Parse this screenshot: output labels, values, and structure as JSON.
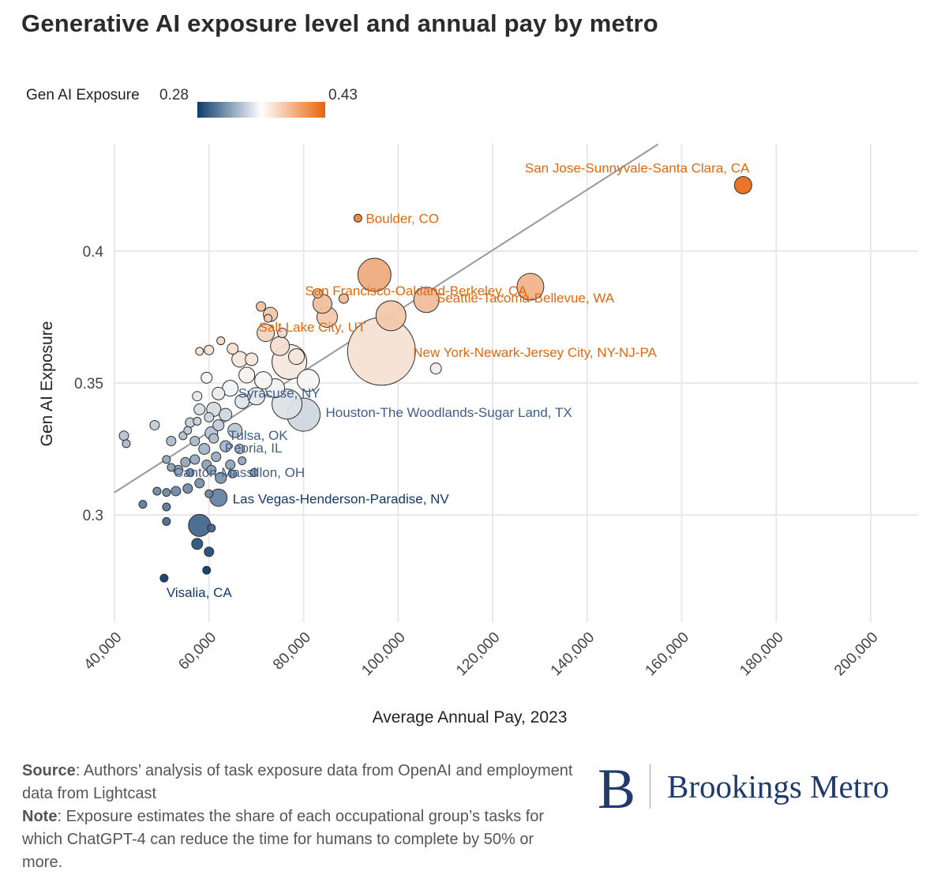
{
  "title": "Generative AI exposure level and annual pay by metro",
  "legend": {
    "label": "Gen AI Exposure",
    "min_label": "0.28",
    "max_label": "0.43",
    "colors": [
      "#0d3c6e",
      "#ffffff",
      "#e8650a"
    ]
  },
  "source": {
    "source_label": "Source",
    "source_text": ": Authors’ analysis of task exposure data from OpenAI and employment data from Lightcast",
    "note_label": "Note",
    "note_text": ": Exposure estimates the share of each occupational group’s tasks for which ChatGPT-4 can reduce the time for humans to complete by 50% or more."
  },
  "logo": {
    "mark": "B",
    "name": "Brookings Metro"
  },
  "chart_data": {
    "type": "scatter",
    "xlabel": "Average Annual Pay, 2023",
    "ylabel": "Gen AI Exposure",
    "xlim": [
      40000,
      210000
    ],
    "ylim": [
      0.26,
      0.44
    ],
    "xticks": [
      "40,000",
      "60,000",
      "80,000",
      "100,000",
      "120,000",
      "140,000",
      "160,000",
      "180,000",
      "200,000"
    ],
    "yticks": [
      "0.3",
      "0.35",
      "0.4"
    ],
    "grid": true,
    "trend_line": {
      "x": [
        40000,
        155000
      ],
      "y": [
        0.3085,
        0.4405
      ]
    },
    "color_scale": {
      "min": 0.28,
      "mid": 0.35,
      "max": 0.43,
      "low": "#0d3c6e",
      "midColor": "#f7f7f7",
      "high": "#e8650a"
    },
    "points": [
      {
        "x": 173000,
        "y": 0.425,
        "size": 11,
        "label": "San Jose-Sunnyvale-Santa Clara, CA"
      },
      {
        "x": 91500,
        "y": 0.4125,
        "size": 5,
        "label": "Boulder, CO"
      },
      {
        "x": 95000,
        "y": 0.391,
        "size": 21,
        "label": "San Francisco-Oakland-Berkeley, CA"
      },
      {
        "x": 128000,
        "y": 0.3865,
        "size": 17,
        "label": "Seattle-Tacoma-Bellevue, WA"
      },
      {
        "x": 106000,
        "y": 0.3815,
        "size": 16,
        "label": ""
      },
      {
        "x": 73000,
        "y": 0.376,
        "size": 9,
        "label": "Salt Lake City, UT"
      },
      {
        "x": 96500,
        "y": 0.362,
        "size": 43,
        "label": "New York-Newark-Jersey City, NY-NJ-PA"
      },
      {
        "x": 98500,
        "y": 0.3755,
        "size": 19,
        "label": ""
      },
      {
        "x": 85000,
        "y": 0.375,
        "size": 13,
        "label": ""
      },
      {
        "x": 84000,
        "y": 0.38,
        "size": 12,
        "label": ""
      },
      {
        "x": 83000,
        "y": 0.384,
        "size": 6,
        "label": ""
      },
      {
        "x": 88500,
        "y": 0.382,
        "size": 6,
        "label": ""
      },
      {
        "x": 71000,
        "y": 0.379,
        "size": 6,
        "label": ""
      },
      {
        "x": 108000,
        "y": 0.3555,
        "size": 7,
        "label": ""
      },
      {
        "x": 80000,
        "y": 0.338,
        "size": 21,
        "label": "Houston-The Woodlands-Sugar Land, TX"
      },
      {
        "x": 77000,
        "y": 0.358,
        "size": 22,
        "label": ""
      },
      {
        "x": 81000,
        "y": 0.351,
        "size": 14,
        "label": ""
      },
      {
        "x": 76500,
        "y": 0.342,
        "size": 19,
        "label": ""
      },
      {
        "x": 75000,
        "y": 0.364,
        "size": 12,
        "label": ""
      },
      {
        "x": 72000,
        "y": 0.369,
        "size": 11,
        "label": ""
      },
      {
        "x": 78500,
        "y": 0.36,
        "size": 10,
        "label": ""
      },
      {
        "x": 74000,
        "y": 0.348,
        "size": 12,
        "label": ""
      },
      {
        "x": 71500,
        "y": 0.351,
        "size": 11,
        "label": ""
      },
      {
        "x": 70000,
        "y": 0.345,
        "size": 11,
        "label": ""
      },
      {
        "x": 69000,
        "y": 0.359,
        "size": 8,
        "label": ""
      },
      {
        "x": 68000,
        "y": 0.353,
        "size": 10,
        "label": ""
      },
      {
        "x": 66500,
        "y": 0.359,
        "size": 10,
        "label": ""
      },
      {
        "x": 65000,
        "y": 0.363,
        "size": 7,
        "label": ""
      },
      {
        "x": 64500,
        "y": 0.348,
        "size": 10,
        "label": "Syracuse, NY"
      },
      {
        "x": 67000,
        "y": 0.343,
        "size": 9,
        "label": ""
      },
      {
        "x": 62000,
        "y": 0.346,
        "size": 8,
        "label": ""
      },
      {
        "x": 61000,
        "y": 0.34,
        "size": 9,
        "label": ""
      },
      {
        "x": 63500,
        "y": 0.338,
        "size": 8,
        "label": ""
      },
      {
        "x": 65500,
        "y": 0.332,
        "size": 9,
        "label": "Tulsa, OK"
      },
      {
        "x": 62000,
        "y": 0.334,
        "size": 7,
        "label": ""
      },
      {
        "x": 59500,
        "y": 0.352,
        "size": 7,
        "label": ""
      },
      {
        "x": 57500,
        "y": 0.345,
        "size": 6,
        "label": ""
      },
      {
        "x": 58000,
        "y": 0.34,
        "size": 7,
        "label": ""
      },
      {
        "x": 60500,
        "y": 0.331,
        "size": 8,
        "label": ""
      },
      {
        "x": 57000,
        "y": 0.328,
        "size": 6,
        "label": ""
      },
      {
        "x": 59000,
        "y": 0.325,
        "size": 7,
        "label": ""
      },
      {
        "x": 63500,
        "y": 0.326,
        "size": 7,
        "label": "Peoria, IL"
      },
      {
        "x": 61500,
        "y": 0.322,
        "size": 6,
        "label": ""
      },
      {
        "x": 59500,
        "y": 0.319,
        "size": 6,
        "label": ""
      },
      {
        "x": 57000,
        "y": 0.321,
        "size": 6,
        "label": ""
      },
      {
        "x": 55000,
        "y": 0.32,
        "size": 6,
        "label": "Canton-Massillon, OH"
      },
      {
        "x": 53500,
        "y": 0.317,
        "size": 6,
        "label": ""
      },
      {
        "x": 62500,
        "y": 0.314,
        "size": 7,
        "label": ""
      },
      {
        "x": 60500,
        "y": 0.317,
        "size": 6,
        "label": ""
      },
      {
        "x": 58000,
        "y": 0.312,
        "size": 6,
        "label": ""
      },
      {
        "x": 55500,
        "y": 0.31,
        "size": 6,
        "label": ""
      },
      {
        "x": 53000,
        "y": 0.309,
        "size": 6,
        "label": ""
      },
      {
        "x": 51000,
        "y": 0.3085,
        "size": 5,
        "label": ""
      },
      {
        "x": 49000,
        "y": 0.309,
        "size": 5,
        "label": ""
      },
      {
        "x": 62000,
        "y": 0.3065,
        "size": 11,
        "label": "Las Vegas-Henderson-Paradise, NV"
      },
      {
        "x": 60000,
        "y": 0.308,
        "size": 5,
        "label": ""
      },
      {
        "x": 51000,
        "y": 0.303,
        "size": 5,
        "label": ""
      },
      {
        "x": 46000,
        "y": 0.304,
        "size": 5,
        "label": ""
      },
      {
        "x": 58000,
        "y": 0.296,
        "size": 14,
        "label": ""
      },
      {
        "x": 60500,
        "y": 0.295,
        "size": 5,
        "label": ""
      },
      {
        "x": 51000,
        "y": 0.2975,
        "size": 5,
        "label": ""
      },
      {
        "x": 57500,
        "y": 0.289,
        "size": 7,
        "label": ""
      },
      {
        "x": 60000,
        "y": 0.286,
        "size": 6,
        "label": ""
      },
      {
        "x": 59500,
        "y": 0.279,
        "size": 5,
        "label": ""
      },
      {
        "x": 50500,
        "y": 0.276,
        "size": 5,
        "label": "Visalia, CA"
      },
      {
        "x": 42000,
        "y": 0.33,
        "size": 6,
        "label": ""
      },
      {
        "x": 42500,
        "y": 0.327,
        "size": 5,
        "label": ""
      },
      {
        "x": 48500,
        "y": 0.334,
        "size": 6,
        "label": ""
      },
      {
        "x": 52000,
        "y": 0.328,
        "size": 6,
        "label": ""
      },
      {
        "x": 54500,
        "y": 0.33,
        "size": 5,
        "label": ""
      },
      {
        "x": 55500,
        "y": 0.332,
        "size": 5,
        "label": ""
      },
      {
        "x": 56000,
        "y": 0.335,
        "size": 6,
        "label": ""
      },
      {
        "x": 51000,
        "y": 0.321,
        "size": 5,
        "label": ""
      },
      {
        "x": 52000,
        "y": 0.318,
        "size": 5,
        "label": ""
      },
      {
        "x": 56000,
        "y": 0.316,
        "size": 5,
        "label": ""
      },
      {
        "x": 61000,
        "y": 0.329,
        "size": 6,
        "label": ""
      },
      {
        "x": 64500,
        "y": 0.319,
        "size": 6,
        "label": ""
      },
      {
        "x": 65000,
        "y": 0.3155,
        "size": 5,
        "label": ""
      },
      {
        "x": 67000,
        "y": 0.3205,
        "size": 5,
        "label": ""
      },
      {
        "x": 69500,
        "y": 0.316,
        "size": 5,
        "label": ""
      },
      {
        "x": 66500,
        "y": 0.325,
        "size": 6,
        "label": ""
      },
      {
        "x": 58000,
        "y": 0.362,
        "size": 5,
        "label": ""
      },
      {
        "x": 60000,
        "y": 0.3625,
        "size": 6,
        "label": ""
      },
      {
        "x": 62500,
        "y": 0.366,
        "size": 5,
        "label": ""
      },
      {
        "x": 72500,
        "y": 0.3745,
        "size": 5,
        "label": ""
      },
      {
        "x": 75500,
        "y": 0.369,
        "size": 6,
        "label": ""
      },
      {
        "x": 57500,
        "y": 0.3355,
        "size": 5,
        "label": ""
      },
      {
        "x": 60000,
        "y": 0.337,
        "size": 6,
        "label": ""
      }
    ]
  }
}
